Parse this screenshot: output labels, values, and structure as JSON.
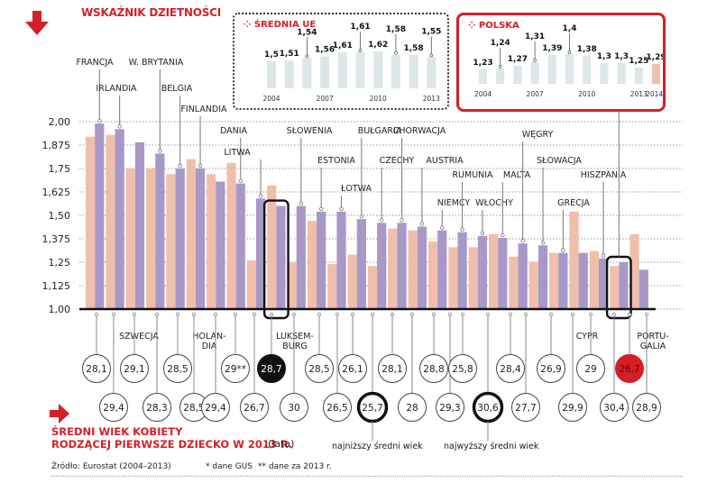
{
  "header": {
    "title": "WSKAŹNIK DZIETNOŚCI",
    "icon": "arrow-down-icon"
  },
  "inset_ue": {
    "title": "ŚREDNIA UE",
    "icon": "dots-icon"
  },
  "inset_pl": {
    "title": "POLSKA",
    "icon": "dots-icon"
  },
  "footer": {
    "icon": "arrow-right-icon",
    "title_line1": "ŚREDNI WIEK KOBIETY",
    "title_line2": "RODZĄCEJ PIERWSZE DZIECKO W 2013 R.",
    "unit": "(lata)",
    "source": "Źródło: Eurostat (2004–2013)",
    "note1": "* dane GUS",
    "note2": "** dane za 2013 r.",
    "legend_lowest": "najniższy średni wiek",
    "legend_highest": "najwyższy średni wiek"
  },
  "colors": {
    "accent": "#d51f26",
    "bar_2004": "#efbfab",
    "bar_2013": "#a898c8",
    "inset_bar": "#dde6e8",
    "inset_bar_highlight": "#efbfab",
    "circle_poland": "#d51f26",
    "circle_highlight": "#111111"
  },
  "chart_data": [
    {
      "type": "bar",
      "title": "WSKAŹNIK DZIETNOŚCI",
      "ylabel": "",
      "xlabel": "",
      "ylim": [
        1.0,
        2.0
      ],
      "yticks": [
        "2,00",
        "1,875",
        "1,75",
        "1,625",
        "1,50",
        "1,375",
        "1,25",
        "1,125",
        "1,00"
      ],
      "ytick_values": [
        2.0,
        1.875,
        1.75,
        1.625,
        1.5,
        1.375,
        1.25,
        1.125,
        1.0
      ],
      "grid": true,
      "categories": [
        "FRANCJA",
        "IRLANDIA",
        "SZWECJA",
        "W. BRYTANIA",
        "BELGIA",
        "FINLANDIA",
        "HOLANDIA",
        "DANIA",
        "LITWA",
        "LUKSEMBURG",
        "SŁOWENIA",
        "ESTONIA",
        "ŁOTWA",
        "BUŁGARIA",
        "CZECHY",
        "CHORWACJA",
        "AUSTRIA",
        "NIEMCY",
        "RUMUNIA",
        "WŁOCHY",
        "MALTA",
        "WĘGRY",
        "SŁOWACJA",
        "GRECJA",
        "CYPR",
        "HISZPANIA",
        "POLSKA",
        "PORTUGALIA"
      ],
      "label_position": [
        "top",
        "top",
        "bottom",
        "top",
        "top",
        "top",
        "bottom",
        "top",
        "top",
        "bottom",
        "top",
        "top",
        "top",
        "top",
        "top",
        "top",
        "top",
        "top",
        "top",
        "top",
        "top",
        "top",
        "top",
        "top",
        "bottom",
        "top",
        "top",
        "bottom"
      ],
      "label_display": [
        "FRANCJA",
        "IRLANDIA",
        "SZWECJA",
        "W. BRYTANIA",
        "BELGIA",
        "FINLANDIA",
        "HOLAN-|DIA",
        "DANIA",
        "LITWA",
        "LUKSEM-|BURG",
        "SŁOWENIA",
        "ESTONIA",
        "ŁOTWA",
        "BUŁGARIA",
        "CZECHY",
        "CHORWACJA",
        "AUSTRIA",
        "NIEMCY",
        "RUMUNIA",
        "WŁOCHY",
        "MALTA",
        "WĘGRY",
        "SŁOWACJA",
        "GRECJA",
        "CYPR",
        "HISZPANIA",
        "",
        "PORTU-|GALIA"
      ],
      "series": [
        {
          "name": "2004",
          "values": [
            1.92,
            1.93,
            1.75,
            1.75,
            1.72,
            1.8,
            1.72,
            1.78,
            1.26,
            1.66,
            1.25,
            1.47,
            1.24,
            1.29,
            1.23,
            1.43,
            1.42,
            1.36,
            1.33,
            1.33,
            1.4,
            1.28,
            1.25,
            1.3,
            1.52,
            1.31,
            1.23,
            1.4
          ]
        },
        {
          "name": "2013",
          "values": [
            1.99,
            1.96,
            1.89,
            1.83,
            1.75,
            1.75,
            1.68,
            1.67,
            1.59,
            1.55,
            1.55,
            1.52,
            1.52,
            1.48,
            1.46,
            1.46,
            1.44,
            1.42,
            1.41,
            1.39,
            1.38,
            1.35,
            1.34,
            1.3,
            1.3,
            1.27,
            1.25,
            1.21
          ]
        }
      ],
      "highlighted": [
        "LUKSEMBURG",
        "POLSKA"
      ],
      "mean_age_first_child_2013": {
        "unit": "lata",
        "values": [
          "28,1",
          "29,4",
          "29,1",
          "28,3",
          "28,5",
          "28,5",
          "29,4",
          "29**",
          "26,7",
          "28,7",
          "30",
          "28,5",
          "26,5",
          "26,1",
          "25,7",
          "28,1",
          "28",
          "28,8",
          "29,3",
          "25,8",
          "30,6",
          "28,4",
          "27,7",
          "26,9",
          "29,9",
          "29",
          "30,4",
          "26,7",
          "28,9"
        ],
        "note": "circles listed left to right"
      }
    },
    {
      "type": "bar",
      "title": "ŚREDNIA UE",
      "categories": [
        "2004",
        "2005",
        "2006",
        "2007",
        "2008",
        "2009",
        "2010",
        "2011",
        "2012",
        "2013"
      ],
      "tick_labels": [
        "2004",
        "2007",
        "2010",
        "2013"
      ],
      "values": [
        1.5,
        1.51,
        1.54,
        1.56,
        1.61,
        1.61,
        1.62,
        1.58,
        1.58,
        1.55
      ],
      "value_labels": [
        "1,5",
        "1,51",
        "1,54",
        "1,56",
        "1,61",
        "1,61",
        "1,62",
        "1,58",
        "1,58",
        "1,55"
      ]
    },
    {
      "type": "bar",
      "title": "POLSKA",
      "categories": [
        "2004",
        "2005",
        "2006",
        "2007",
        "2008",
        "2009",
        "2010",
        "2011",
        "2012",
        "2013",
        "2014*"
      ],
      "tick_labels": [
        "2004",
        "2007",
        "2010",
        "2013",
        "2014*"
      ],
      "values": [
        1.23,
        1.24,
        1.27,
        1.31,
        1.39,
        1.4,
        1.38,
        1.3,
        1.3,
        1.25,
        1.29
      ],
      "value_labels": [
        "1,23",
        "1,24",
        "1,27",
        "1,31",
        "1,39",
        "1,4",
        "1,38",
        "1,3",
        "1,3",
        "1,25",
        "1,29"
      ]
    }
  ],
  "age_circles": [
    {
      "value": "28,1",
      "row": 0,
      "style": "normal",
      "country": "FRANCJA"
    },
    {
      "value": "29,4",
      "row": 1,
      "style": "normal",
      "country": "IRLANDIA"
    },
    {
      "value": "29,1",
      "row": 0,
      "style": "normal",
      "country": "SZWECJA"
    },
    {
      "value": "28,3",
      "row": 1,
      "style": "normal",
      "country": "W. BRYTANIA"
    },
    {
      "value": "28,5",
      "row": 0,
      "style": "normal",
      "country": "BELGIA"
    },
    {
      "value": "28,5",
      "row": 1,
      "style": "normal",
      "country": "FINLANDIA"
    },
    {
      "value": "29,4",
      "row": 1,
      "style": "normal",
      "country": "HOLANDIA"
    },
    {
      "value": "29**",
      "row": 0,
      "style": "normal",
      "country": "DANIA"
    },
    {
      "value": "26,7",
      "row": 1,
      "style": "normal",
      "country": "LITWA"
    },
    {
      "value": "28,7",
      "row": 0,
      "style": "black",
      "country": "LUKSEMBURG-box"
    },
    {
      "value": "30",
      "row": 1,
      "style": "normal",
      "country": "LUKSEMBURG"
    },
    {
      "value": "28,5",
      "row": 0,
      "style": "normal",
      "country": "SŁOWENIA"
    },
    {
      "value": "26,5",
      "row": 1,
      "style": "normal",
      "country": "ESTONIA"
    },
    {
      "value": "26,1",
      "row": 0,
      "style": "normal",
      "country": "ŁOTWA"
    },
    {
      "value": "25,7",
      "row": 1,
      "style": "lowest",
      "country": "BUŁGARIA"
    },
    {
      "value": "28,1",
      "row": 0,
      "style": "normal",
      "country": "CZECHY"
    },
    {
      "value": "28",
      "row": 1,
      "style": "normal",
      "country": "CHORWACJA"
    },
    {
      "value": "28,8",
      "row": 0,
      "style": "normal",
      "country": "AUSTRIA"
    },
    {
      "value": "29,3",
      "row": 1,
      "style": "normal",
      "country": "NIEMCY"
    },
    {
      "value": "25,8",
      "row": 0,
      "style": "normal",
      "country": "RUMUNIA"
    },
    {
      "value": "30,6",
      "row": 1,
      "style": "highest",
      "country": "WŁOCHY"
    },
    {
      "value": "28,4",
      "row": 0,
      "style": "normal",
      "country": "MALTA"
    },
    {
      "value": "27,7",
      "row": 1,
      "style": "normal",
      "country": "WĘGRY"
    },
    {
      "value": "26,9",
      "row": 0,
      "style": "normal",
      "country": "SŁOWACJA"
    },
    {
      "value": "29,9",
      "row": 1,
      "style": "normal",
      "country": "GRECJA"
    },
    {
      "value": "29",
      "row": 0,
      "style": "normal",
      "country": "CYPR"
    },
    {
      "value": "30,4",
      "row": 1,
      "style": "normal",
      "country": "HISZPANIA"
    },
    {
      "value": "26,7",
      "row": 0,
      "style": "red",
      "country": "POLSKA"
    },
    {
      "value": "28,9",
      "row": 1,
      "style": "normal",
      "country": "PORTUGALIA"
    }
  ]
}
